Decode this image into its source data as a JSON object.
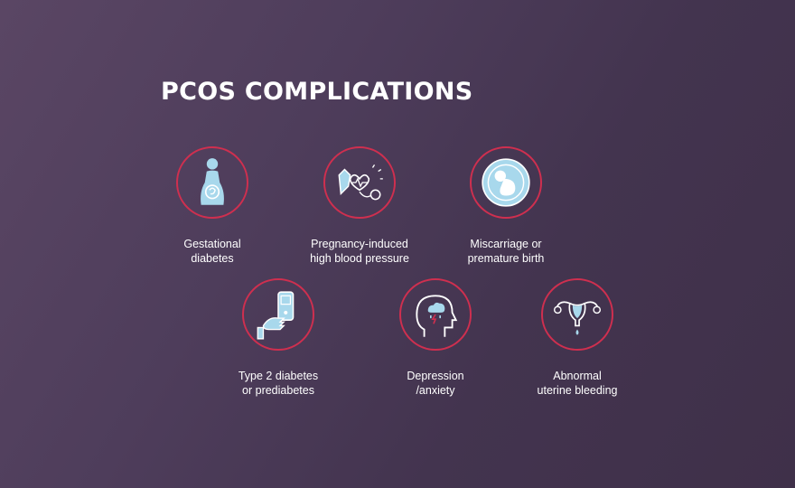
{
  "title": "PCOS COMPLICATIONS",
  "colors": {
    "ring": "#cf2f4f",
    "icon_fill": "#a8d8ec",
    "icon_stroke": "#ffffff",
    "background": "#4a3a57"
  },
  "complications": [
    {
      "icon": "pregnant-woman-icon",
      "lines": [
        "Gestational",
        "diabetes"
      ]
    },
    {
      "icon": "blood-pressure-icon",
      "lines": [
        "Pregnancy-induced",
        "high blood pressure"
      ]
    },
    {
      "icon": "fetus-icon",
      "lines": [
        "Miscarriage or",
        "premature birth"
      ]
    },
    {
      "icon": "glucose-meter-icon",
      "lines": [
        "Type 2 diabetes",
        "or prediabetes"
      ]
    },
    {
      "icon": "head-storm-icon",
      "lines": [
        "Depression",
        "/anxiety"
      ]
    },
    {
      "icon": "uterus-icon",
      "lines": [
        "Abnormal",
        "uterine bleeding"
      ]
    }
  ]
}
